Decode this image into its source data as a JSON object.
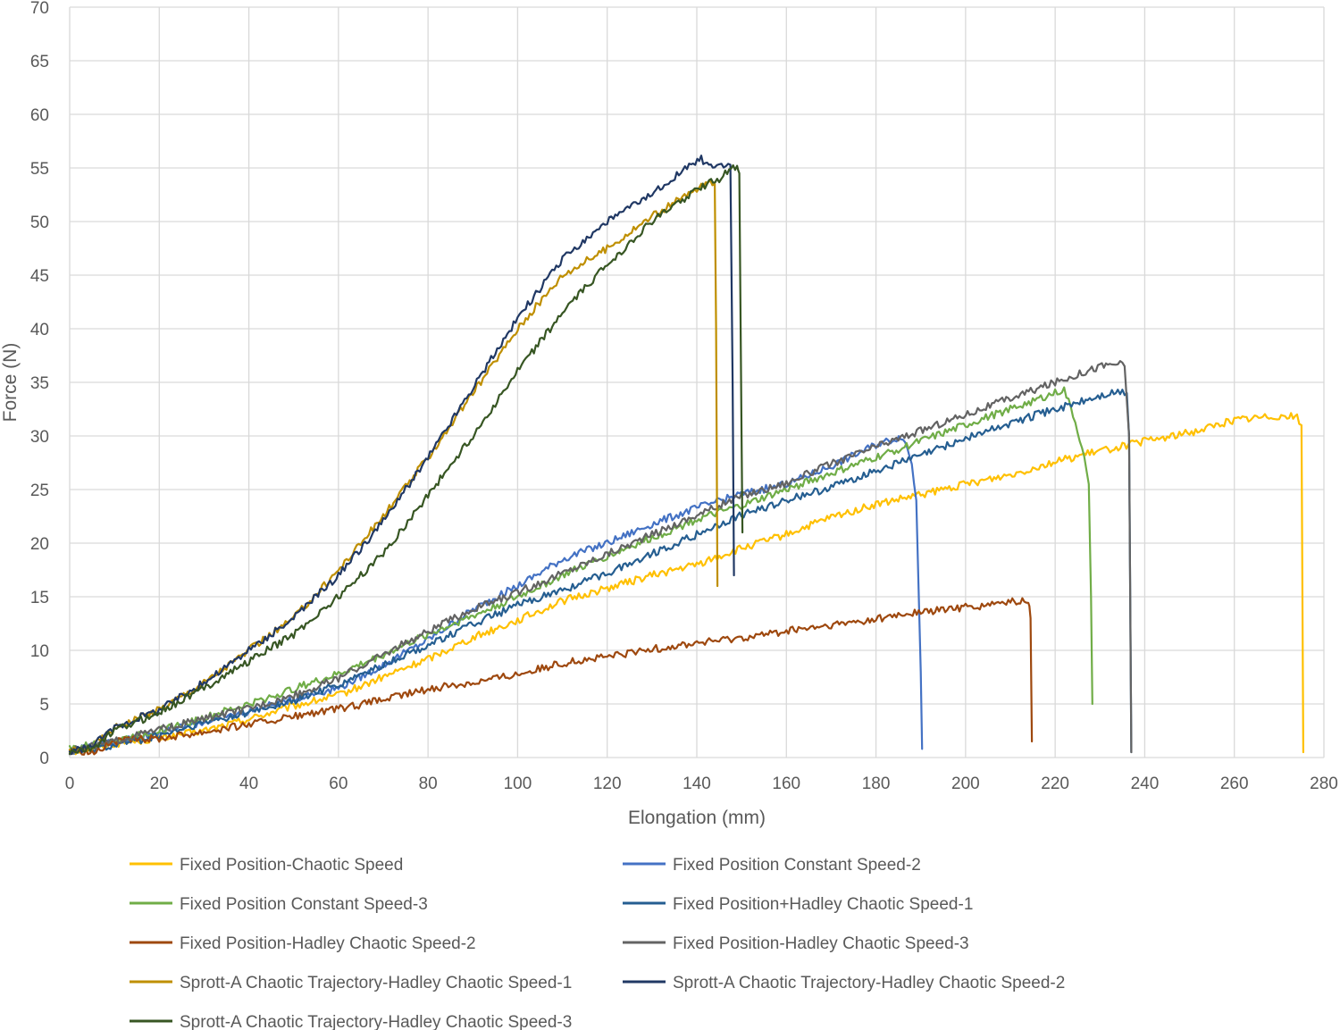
{
  "chart_data": {
    "type": "line",
    "title": "",
    "xlabel": "Elongation (mm)",
    "ylabel": "Force (N)",
    "xlim": [
      0,
      280
    ],
    "ylim": [
      0,
      70
    ],
    "xticks": [
      0,
      20,
      40,
      60,
      80,
      100,
      120,
      140,
      160,
      180,
      200,
      220,
      240,
      260,
      280
    ],
    "yticks": [
      0,
      5,
      10,
      15,
      20,
      25,
      30,
      35,
      40,
      45,
      50,
      55,
      60,
      65,
      70
    ],
    "grid": true,
    "legend_position": "bottom",
    "series": [
      {
        "name": "Fixed Position-Chaotic Speed",
        "color": "#ffc000",
        "x": [
          0,
          10,
          20,
          30,
          40,
          50,
          60,
          70,
          80,
          90,
          100,
          110,
          120,
          130,
          140,
          150,
          160,
          170,
          180,
          190,
          200,
          210,
          220,
          230,
          240,
          250,
          260,
          270,
          274,
          275,
          275.4
        ],
        "y": [
          0.5,
          1.3,
          1.8,
          2.5,
          3.6,
          4.8,
          5.8,
          7.5,
          9.2,
          11.2,
          12.8,
          14.6,
          15.8,
          17.0,
          18.0,
          19.5,
          20.8,
          22.4,
          23.6,
          24.5,
          25.5,
          26.4,
          27.6,
          28.6,
          29.5,
          30.3,
          31.5,
          31.9,
          31.8,
          31.0,
          0.5
        ]
      },
      {
        "name": "Fixed Position Constant Speed-2",
        "color": "#4472c4",
        "x": [
          0,
          10,
          20,
          30,
          40,
          50,
          60,
          70,
          80,
          90,
          100,
          110,
          120,
          130,
          140,
          150,
          160,
          170,
          180,
          186,
          188,
          189,
          190,
          190.3
        ],
        "y": [
          0.6,
          1.5,
          2.4,
          3.3,
          4.3,
          5.5,
          6.5,
          8.6,
          11.0,
          13.8,
          16.0,
          18.5,
          20.0,
          21.8,
          23.3,
          24.6,
          25.5,
          27.2,
          29.2,
          30.0,
          27.5,
          24.0,
          8.0,
          0.8
        ]
      },
      {
        "name": "Fixed Position Constant Speed-3",
        "color": "#70ad47",
        "x": [
          0,
          10,
          20,
          30,
          40,
          50,
          60,
          70,
          80,
          90,
          100,
          110,
          120,
          130,
          140,
          150,
          160,
          170,
          180,
          190,
          200,
          210,
          220,
          222,
          224,
          226,
          227.5,
          228,
          228.3
        ],
        "y": [
          0.8,
          1.6,
          2.5,
          3.7,
          5.0,
          6.4,
          7.8,
          9.6,
          11.5,
          13.2,
          15.0,
          17.0,
          18.8,
          20.5,
          22.2,
          23.5,
          25.0,
          26.5,
          28.0,
          29.5,
          31.0,
          32.5,
          34.0,
          34.3,
          32.0,
          29.0,
          25.5,
          15.0,
          5.0
        ]
      },
      {
        "name": "Fixed Position+Hadley Chaotic Speed-1",
        "color": "#255e91",
        "x": [
          0,
          10,
          20,
          30,
          40,
          50,
          60,
          70,
          80,
          90,
          100,
          110,
          120,
          130,
          140,
          150,
          160,
          170,
          180,
          190,
          200,
          210,
          220,
          230,
          234,
          236,
          236.5,
          237
        ],
        "y": [
          0.5,
          1.2,
          2.0,
          3.2,
          4.2,
          5.3,
          6.8,
          8.6,
          10.5,
          12.4,
          14.2,
          15.6,
          17.2,
          19.0,
          20.8,
          22.6,
          24.0,
          25.2,
          26.8,
          28.2,
          29.8,
          31.2,
          32.5,
          33.7,
          34.1,
          34.0,
          30.0,
          0.5
        ]
      },
      {
        "name": "Fixed Position-Hadley Chaotic Speed-2",
        "color": "#9e480e",
        "x": [
          0,
          5,
          10,
          20,
          30,
          40,
          50,
          60,
          70,
          80,
          90,
          100,
          110,
          120,
          130,
          140,
          150,
          160,
          170,
          180,
          190,
          200,
          210,
          214,
          214.5,
          214.8
        ],
        "y": [
          0.8,
          0.5,
          1.5,
          1.8,
          2.4,
          3.1,
          3.8,
          4.5,
          5.4,
          6.4,
          7.0,
          7.8,
          8.8,
          9.4,
          10.1,
          10.7,
          11.2,
          11.8,
          12.3,
          12.9,
          13.6,
          14.0,
          14.5,
          14.6,
          13.0,
          1.5
        ]
      },
      {
        "name": "Fixed Position-Hadley Chaotic Speed-3",
        "color": "#636363",
        "x": [
          0,
          10,
          20,
          30,
          40,
          50,
          60,
          70,
          80,
          90,
          100,
          110,
          120,
          130,
          140,
          150,
          160,
          170,
          180,
          190,
          200,
          210,
          220,
          230,
          234,
          235.5,
          236.5,
          237
        ],
        "y": [
          0.6,
          1.5,
          2.6,
          3.6,
          4.6,
          5.8,
          7.4,
          9.6,
          11.8,
          13.8,
          15.4,
          17.2,
          19.0,
          20.8,
          22.6,
          24.4,
          25.6,
          27.4,
          29.0,
          30.5,
          32.0,
          33.5,
          35.0,
          36.5,
          36.8,
          36.5,
          30.0,
          0.5
        ]
      },
      {
        "name": "Sprott-A Chaotic Trajectory-Hadley Chaotic Speed-1",
        "color": "#bf8f00",
        "x": [
          0,
          5,
          10,
          20,
          30,
          40,
          50,
          60,
          70,
          80,
          90,
          100,
          110,
          120,
          130,
          140,
          142,
          144,
          144.3,
          144.6
        ],
        "y": [
          0.5,
          1.0,
          2.8,
          4.5,
          7.0,
          10.0,
          13.0,
          17.5,
          22.5,
          28.0,
          34.0,
          40.0,
          45.0,
          47.5,
          50.5,
          53.0,
          53.6,
          53.5,
          40.0,
          16.0
        ]
      },
      {
        "name": "Sprott-A Chaotic Trajectory-Hadley Chaotic Speed-2",
        "color": "#203864",
        "x": [
          0,
          5,
          10,
          20,
          30,
          40,
          50,
          60,
          70,
          80,
          90,
          100,
          110,
          120,
          130,
          136,
          141,
          144,
          146,
          147.5,
          148,
          148.3
        ],
        "y": [
          0.5,
          1.0,
          2.8,
          4.5,
          7.0,
          10.0,
          13.0,
          17.0,
          22.0,
          28.0,
          34.5,
          41.0,
          46.5,
          50.0,
          52.5,
          54.5,
          55.8,
          55.0,
          55.2,
          55.3,
          35.0,
          17.0
        ]
      },
      {
        "name": "Sprott-A Chaotic Trajectory-Hadley Chaotic Speed-3",
        "color": "#375623",
        "x": [
          0,
          5,
          10,
          20,
          30,
          40,
          50,
          60,
          70,
          80,
          90,
          100,
          110,
          120,
          130,
          140,
          145,
          149,
          149.5,
          150,
          150.2
        ],
        "y": [
          0.5,
          0.8,
          2.5,
          4.2,
          6.5,
          9.0,
          11.5,
          15.0,
          19.0,
          24.5,
          30.0,
          36.0,
          41.5,
          46.0,
          50.0,
          53.0,
          54.0,
          55.3,
          54.5,
          30.0,
          21.0
        ]
      }
    ]
  }
}
